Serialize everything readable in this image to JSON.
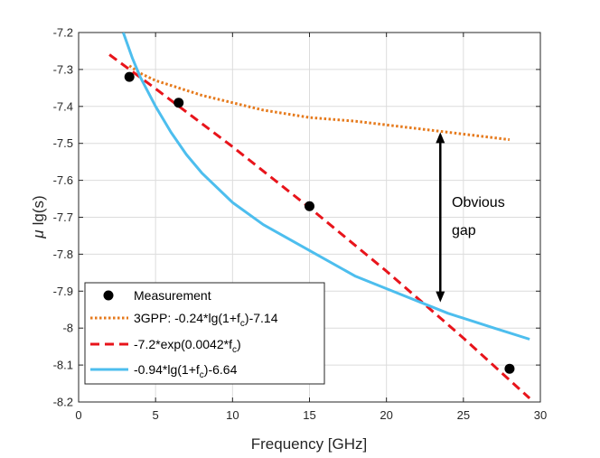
{
  "chart_data": {
    "type": "line",
    "title": "",
    "xlabel": "Frequency [GHz]",
    "ylabel_mu": "μ",
    "ylabel_rest": "lg(s)",
    "xlim": [
      0,
      30
    ],
    "ylim": [
      -8.2,
      -7.2
    ],
    "xticks": [
      0,
      5,
      10,
      15,
      20,
      25,
      30
    ],
    "yticks": [
      -7.2,
      -7.3,
      -7.4,
      -7.5,
      -7.6,
      -7.7,
      -7.8,
      -7.9,
      -8,
      -8.1,
      -8.2
    ],
    "xtick_labels": [
      "0",
      "5",
      "10",
      "15",
      "20",
      "25",
      "30"
    ],
    "ytick_labels": [
      "-7.2",
      "-7.3",
      "-7.4",
      "-7.5",
      "-7.6",
      "-7.7",
      "-7.8",
      "-7.9",
      "-8",
      "-8.1",
      "-8.2"
    ],
    "grid": true,
    "legend_position": "bottom-left",
    "measurement": {
      "name": "Measurement",
      "color": "#000000",
      "x": [
        3.3,
        6.5,
        15,
        28
      ],
      "y": [
        -7.32,
        -7.39,
        -7.67,
        -8.11
      ]
    },
    "series": [
      {
        "name": "3GPP: -0.24*lg(1+fc)-7.14",
        "legend_main": "3GPP: -0.24*lg(1+f",
        "legend_sub": "c",
        "legend_tail": ")-7.14",
        "color": "#E67A1C",
        "style": "dotted",
        "x": [
          3.3,
          4,
          5,
          6.5,
          8,
          10,
          12,
          15,
          18,
          21,
          24,
          28
        ],
        "y": [
          -7.29,
          -7.31,
          -7.33,
          -7.35,
          -7.37,
          -7.39,
          -7.41,
          -7.43,
          -7.44,
          -7.455,
          -7.47,
          -7.49
        ]
      },
      {
        "name": "-7.2*exp(0.0042*fc)",
        "legend_main": "-7.2*exp(0.0042*f",
        "legend_sub": "c",
        "legend_tail": ")",
        "color": "#E8141B",
        "style": "dashed",
        "x": [
          2,
          5,
          10,
          15,
          20,
          25,
          29.3
        ],
        "y": [
          -7.26,
          -7.352,
          -7.509,
          -7.674,
          -7.846,
          -8.027,
          -8.19
        ]
      },
      {
        "name": "-0.94*lg(1+fc)-6.64",
        "legend_main": "-0.94*lg(1+f",
        "legend_sub": "c",
        "legend_tail": ")-6.64",
        "color": "#4DBEEE",
        "style": "solid",
        "x": [
          2.9,
          3.5,
          4,
          5,
          6,
          7,
          8,
          10,
          12,
          15,
          18,
          21,
          24,
          27,
          29.3
        ],
        "y": [
          -7.2,
          -7.27,
          -7.32,
          -7.4,
          -7.47,
          -7.53,
          -7.58,
          -7.66,
          -7.72,
          -7.79,
          -7.86,
          -7.91,
          -7.96,
          -8.0,
          -8.03
        ]
      }
    ],
    "annotation": {
      "line1": "Obvious",
      "line2": "gap",
      "arrow_x": 23.5,
      "arrow_y_top": -7.47,
      "arrow_y_bottom": -7.93
    }
  }
}
